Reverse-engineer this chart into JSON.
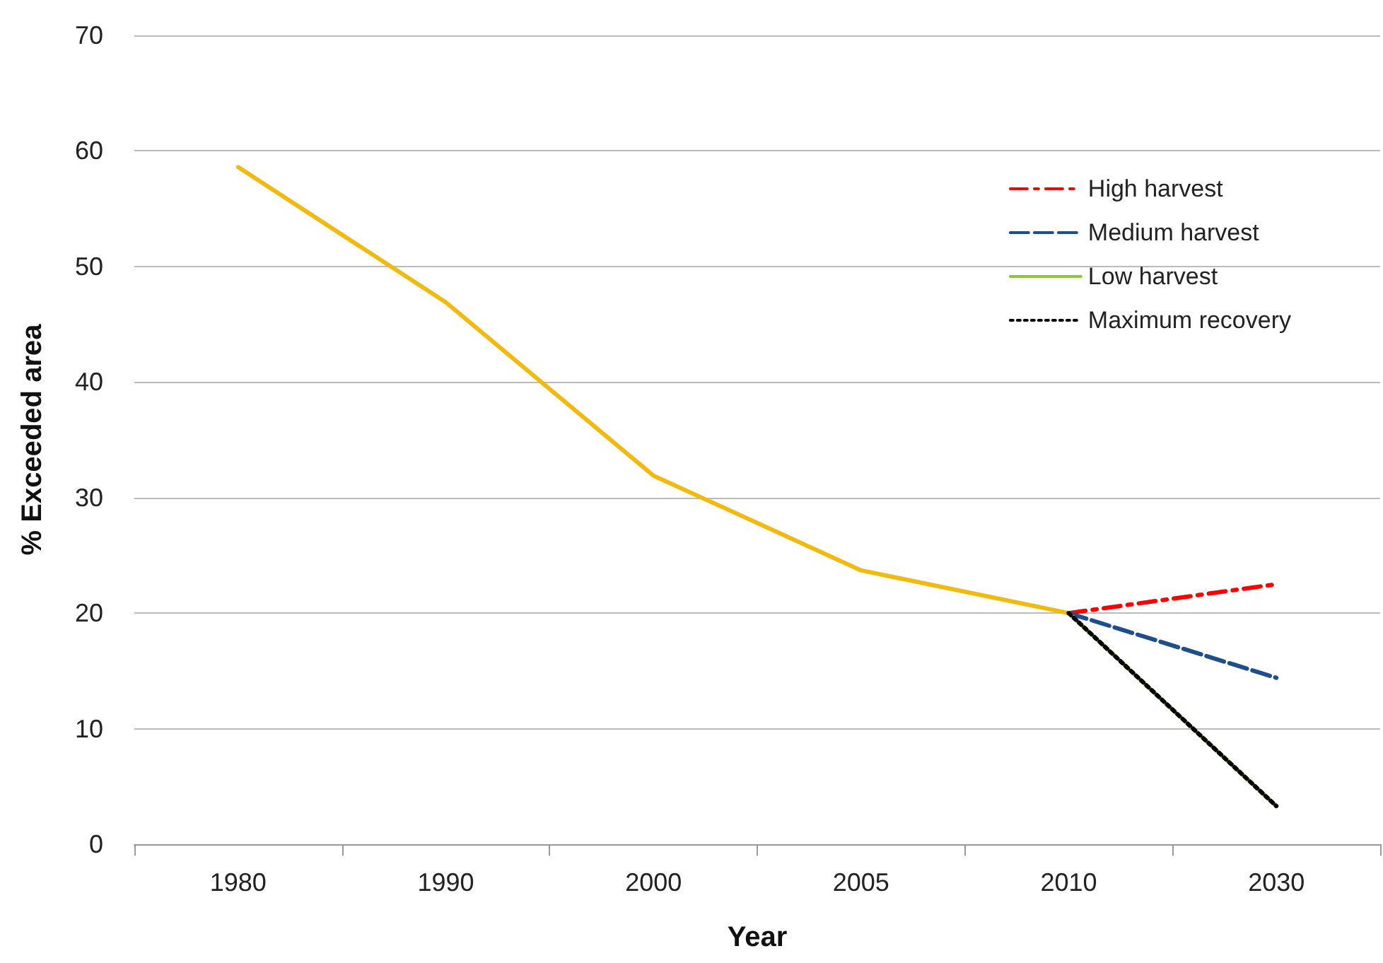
{
  "chart_data": {
    "type": "line",
    "xlabel": "Year",
    "ylabel": "% Exceeded area",
    "categories": [
      "1980",
      "1990",
      "2000",
      "2005",
      "2010",
      "2030"
    ],
    "ylim": [
      0,
      70
    ],
    "yticks": [
      0,
      10,
      20,
      30,
      40,
      50,
      60,
      70
    ],
    "grid": "y",
    "legend": "top right",
    "marker": "none",
    "series": [
      {
        "color": "#f2b90f",
        "line_style": "solid",
        "values": [
          58.6,
          46.9,
          31.9,
          23.7,
          20.0,
          null
        ]
      },
      {
        "name": "High harvest",
        "color": "#ff0000",
        "line_style": "dashdot",
        "values": [
          null,
          null,
          null,
          null,
          20.0,
          22.5
        ]
      },
      {
        "name": "Medium harvest",
        "color": "#1f4e8c",
        "line_style": "dashed",
        "values": [
          null,
          null,
          null,
          null,
          20.0,
          14.4
        ]
      },
      {
        "name": "Low harvest",
        "color": "#8dc63f",
        "line_style": "solid",
        "values": [
          null,
          null,
          null,
          null,
          20.0,
          3.3
        ]
      },
      {
        "name": "Maximum recovery",
        "color": "#000000",
        "line_style": "dotted",
        "values": [
          null,
          null,
          null,
          null,
          20.0,
          3.3
        ]
      }
    ]
  }
}
